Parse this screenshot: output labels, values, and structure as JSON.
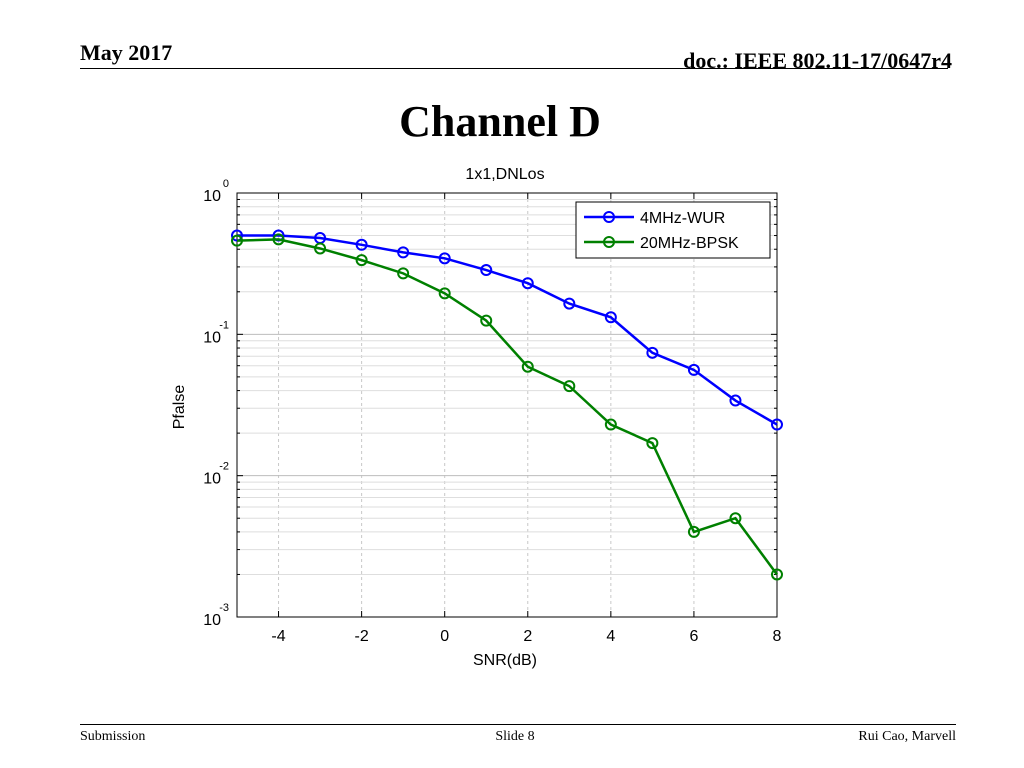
{
  "header": {
    "date": "May 2017",
    "doc": "doc.: IEEE 802.11-17/0647r4"
  },
  "slide": {
    "title": "Channel D"
  },
  "footer": {
    "left": "Submission",
    "center": "Slide 8",
    "right": "Rui Cao, Marvell"
  },
  "chart_data": {
    "type": "line",
    "title": "1x1,DNLos",
    "xlabel": "SNR(dB)",
    "ylabel": "Pfalse",
    "yscale": "log",
    "xlim": [
      -5,
      8
    ],
    "ylim": [
      0.001,
      1
    ],
    "xticks": [
      -4,
      -2,
      0,
      2,
      4,
      6,
      8
    ],
    "yticks": [
      {
        "value": 1,
        "base": "10",
        "exp": "0"
      },
      {
        "value": 0.1,
        "base": "10",
        "exp": "-1"
      },
      {
        "value": 0.01,
        "base": "10",
        "exp": "-2"
      },
      {
        "value": 0.001,
        "base": "10",
        "exp": "-3"
      }
    ],
    "grid": true,
    "legend_position": "top-right",
    "x": [
      -5,
      -4,
      -3,
      -2,
      -1,
      0,
      1,
      2,
      3,
      4,
      5,
      6,
      7,
      8
    ],
    "series": [
      {
        "name": "4MHz-WUR",
        "color": "#0000ff",
        "values": [
          0.5,
          0.5,
          0.48,
          0.43,
          0.38,
          0.345,
          0.285,
          0.23,
          0.165,
          0.132,
          0.074,
          0.056,
          0.034,
          0.023
        ]
      },
      {
        "name": "20MHz-BPSK",
        "color": "#008000",
        "values": [
          0.46,
          0.47,
          0.405,
          0.335,
          0.27,
          0.195,
          0.125,
          0.059,
          0.043,
          0.023,
          0.017,
          0.004,
          0.005,
          0.002
        ]
      }
    ]
  }
}
